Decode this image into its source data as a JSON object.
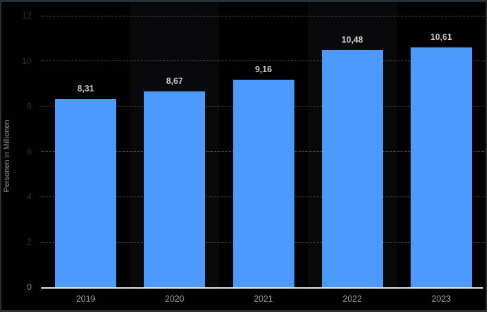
{
  "chart_data": {
    "type": "bar",
    "title": "",
    "categories": [
      "2019",
      "2020",
      "2021",
      "2022",
      "2023"
    ],
    "values": [
      8.31,
      8.67,
      9.16,
      10.48,
      10.61
    ],
    "value_labels": [
      "8,31",
      "8,67",
      "9,16",
      "10,48",
      "10,61"
    ],
    "xlabel": "",
    "ylabel": "Personen in Millionen",
    "ylim": [
      0,
      12
    ],
    "yticks": [
      0,
      2,
      4,
      6,
      8,
      10,
      12
    ],
    "ytick_labels": [
      "0",
      "2",
      "4",
      "6",
      "8",
      "10",
      "12"
    ],
    "grid": "horizontal-dotted",
    "legend": "none",
    "decimal_separator": ","
  },
  "colors": {
    "background": "#010102",
    "column_band": "#09090b",
    "frame_border": "#2a3136",
    "bar": "#4d9aff",
    "axis_line": "#e8e8e8",
    "grid_line": "#585858",
    "tick_label": "#2d2d2d",
    "zero_tick_label": "#8a8a8a",
    "category_label": "#9a9a9a",
    "data_label": "#c9c9c9",
    "y_title": "#8a8a8a"
  }
}
